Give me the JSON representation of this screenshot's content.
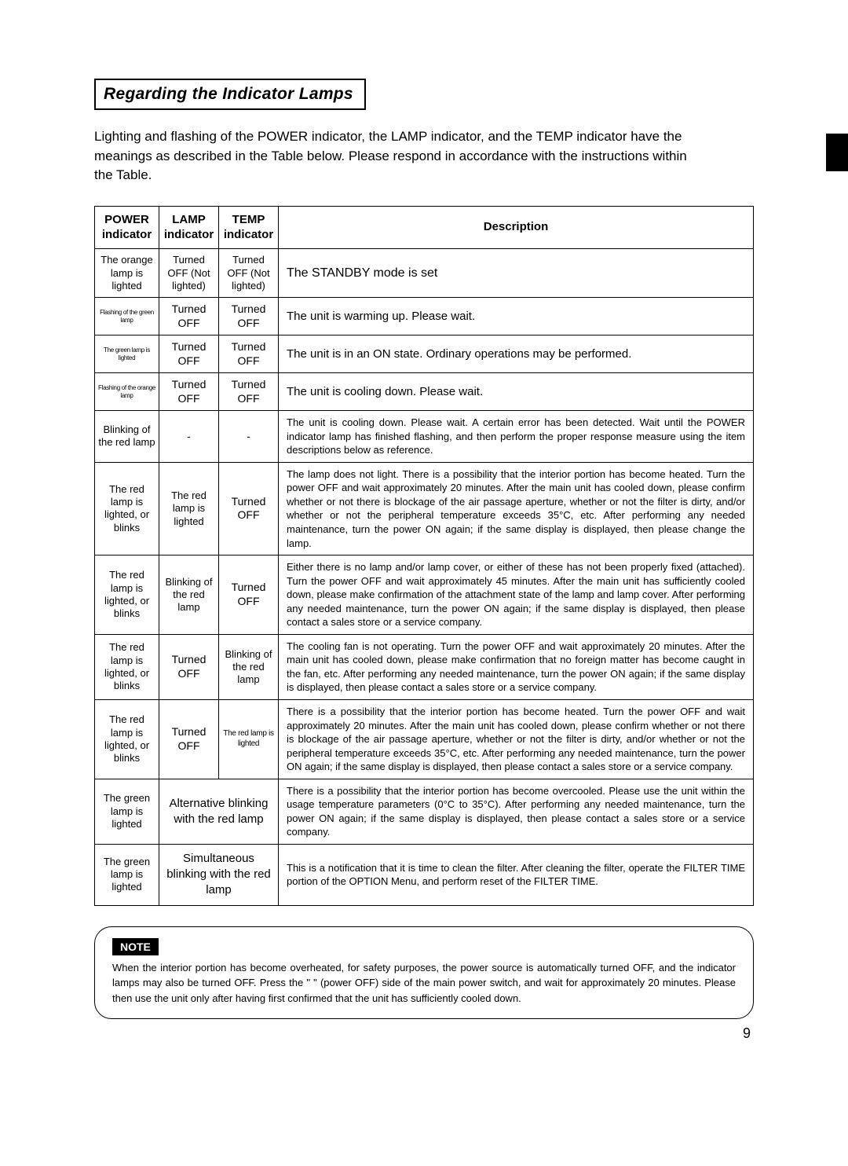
{
  "page": {
    "title": "Regarding the Indicator Lamps",
    "intro": "Lighting and flashing of the POWER indicator, the LAMP indicator, and the TEMP indicator have the meanings as described in the Table below. Please respond in accordance with the instructions within the Table.",
    "page_number": "9"
  },
  "table": {
    "headers": {
      "c1": "POWER indicator",
      "c2": "LAMP indicator",
      "c3": "TEMP indicator",
      "c4": "Description"
    },
    "rows": [
      {
        "c1": "The orange lamp is lighted",
        "c2": "Turned OFF (Not lighted)",
        "c3": "Turned OFF (Not lighted)",
        "desc": "The STANDBY mode is set"
      },
      {
        "c1": "Flashing of the green lamp",
        "c2": "Turned OFF",
        "c3": "Turned OFF",
        "desc": "The unit is warming up. Please wait."
      },
      {
        "c1": "The green lamp is lighted",
        "c2": "Turned OFF",
        "c3": "Turned OFF",
        "desc": "The unit is in an ON state. Ordinary operations may be performed."
      },
      {
        "c1": "Flashing of the orange lamp",
        "c2": "Turned OFF",
        "c3": "Turned OFF",
        "desc": "The unit is cooling down. Please wait."
      },
      {
        "c1": "Blinking of the red lamp",
        "c2": "-",
        "c3": "-",
        "desc": "The unit is cooling down. Please wait.\nA certain error has been detected. Wait until the POWER indicator lamp has finished flashing, and then perform the proper response measure using the item descriptions below as reference."
      },
      {
        "c1": "The red lamp is lighted, or blinks",
        "c2": "The red lamp is lighted",
        "c3": "Turned OFF",
        "desc": "The lamp does not light.\nThere is a possibility that the interior portion has become heated. Turn the power OFF and wait approximately 20 minutes. After the main unit has cooled down, please confirm whether or not there is blockage of the air passage aperture, whether or not the filter is dirty, and/or whether or not the peripheral temperature exceeds 35°C, etc. After performing any needed maintenance, turn the power ON again; if the same display is displayed, then please change the lamp."
      },
      {
        "c1": "The red lamp is lighted, or blinks",
        "c2": "Blinking of the red lamp",
        "c3": "Turned OFF",
        "desc": "Either there is no lamp and/or lamp cover, or either of these has not been properly fixed (attached). Turn the power OFF and wait approximately 45 minutes. After the main unit has sufficiently cooled down, please make confirmation of the attachment state of the lamp and lamp cover. After performing any needed maintenance, turn the power ON again; if the same display is displayed, then please contact a sales store or a service company."
      },
      {
        "c1": "The red lamp is lighted, or blinks",
        "c2": "Turned OFF",
        "c3": "Blinking of the red lamp",
        "desc": "The cooling fan is not operating. Turn the power OFF and wait approximately 20 minutes. After the main unit has cooled down, please make confirmation that no foreign matter has become caught in the fan, etc. After performing any needed maintenance, turn the power ON again; if the same display is displayed, then please contact a sales store or a service company."
      },
      {
        "c1": "The red lamp is lighted, or blinks",
        "c2": "Turned OFF",
        "c3": "The red lamp is lighted",
        "desc": "There is a possibility that the interior portion has become heated. Turn the power OFF and wait approximately 20 minutes. After the main unit has cooled down, please confirm whether or not there is blockage of the air passage aperture, whether or not the filter is dirty, and/or whether or not the peripheral temperature exceeds 35°C, etc. After performing any needed maintenance, turn the power ON again; if the same display is displayed, then please contact a sales store or a service company."
      },
      {
        "c1": "The green lamp is lighted",
        "merged": "Alternative blinking with the red lamp",
        "desc": "There is a possibility that the interior portion has become overcooled. Please use the unit within the usage temperature parameters (0°C to 35°C). After performing any needed maintenance, turn the power ON again; if the same display is displayed, then please contact a sales store or a service company."
      },
      {
        "c1": "The green lamp is lighted",
        "merged": "Simultaneous blinking with the red lamp",
        "desc": "This is a notification that it is time to clean the filter.\nAfter cleaning the filter, operate the FILTER TIME portion of the OPTION Menu, and perform reset of the FILTER TIME."
      }
    ]
  },
  "note": {
    "label": "NOTE",
    "text": "When the interior portion has become overheated, for safety purposes, the power source is automatically turned OFF, and the indicator lamps may also be turned OFF. Press the \"   \" (power OFF) side of the main power switch, and wait for approximately 20 minutes. Please then use the unit only after having first confirmed that the unit has sufficiently cooled down."
  }
}
